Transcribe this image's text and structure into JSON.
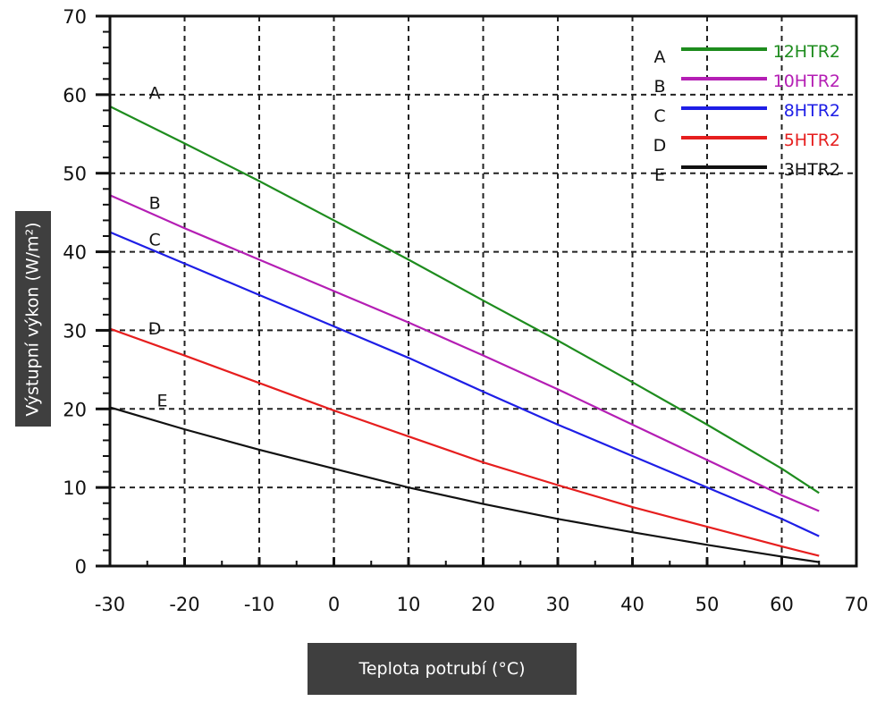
{
  "chart_data": {
    "type": "line",
    "xlabel": "Teplota potrubí (°C)",
    "ylabel": "Výstupní výkon (W/m²)",
    "xlim": [
      -30,
      70
    ],
    "ylim": [
      0,
      70
    ],
    "x_ticks": [
      -30,
      -20,
      -10,
      0,
      10,
      20,
      30,
      40,
      50,
      60,
      70
    ],
    "y_ticks": [
      0,
      10,
      20,
      30,
      40,
      50,
      60,
      70
    ],
    "grid": true,
    "legend_position": "top-right",
    "series": [
      {
        "letter": "A",
        "name": "12HTR2",
        "color": "#1e8c1e",
        "x": [
          -30,
          -20,
          -10,
          0,
          10,
          20,
          30,
          40,
          50,
          60,
          65
        ],
        "y": [
          58.5,
          53.8,
          49.0,
          44.0,
          39.0,
          33.8,
          28.7,
          23.4,
          18.0,
          12.4,
          9.3
        ]
      },
      {
        "letter": "B",
        "name": "10HTR2",
        "color": "#b41eb4",
        "x": [
          -30,
          -20,
          -10,
          0,
          10,
          20,
          30,
          40,
          50,
          60,
          65
        ],
        "y": [
          47.2,
          43.0,
          39.0,
          35.0,
          31.0,
          26.8,
          22.5,
          18.0,
          13.5,
          9.0,
          7.0
        ]
      },
      {
        "letter": "C",
        "name": "8HTR2",
        "color": "#1e1ee6",
        "x": [
          -30,
          -20,
          -10,
          0,
          10,
          20,
          30,
          40,
          50,
          60,
          65
        ],
        "y": [
          42.5,
          38.5,
          34.5,
          30.5,
          26.5,
          22.2,
          18.0,
          14.0,
          10.0,
          6.0,
          3.8
        ]
      },
      {
        "letter": "D",
        "name": "5HTR2",
        "color": "#e61e1e",
        "x": [
          -30,
          -20,
          -10,
          0,
          10,
          20,
          30,
          40,
          50,
          60,
          65
        ],
        "y": [
          30.2,
          26.8,
          23.3,
          19.8,
          16.5,
          13.2,
          10.3,
          7.5,
          5.0,
          2.5,
          1.3
        ]
      },
      {
        "letter": "E",
        "name": "3HTR2",
        "color": "#111111",
        "x": [
          -30,
          -20,
          -10,
          0,
          10,
          20,
          30,
          40,
          50,
          60,
          65
        ],
        "y": [
          20.2,
          17.4,
          14.8,
          12.4,
          10.0,
          7.9,
          6.0,
          4.3,
          2.7,
          1.2,
          0.5
        ]
      }
    ]
  }
}
